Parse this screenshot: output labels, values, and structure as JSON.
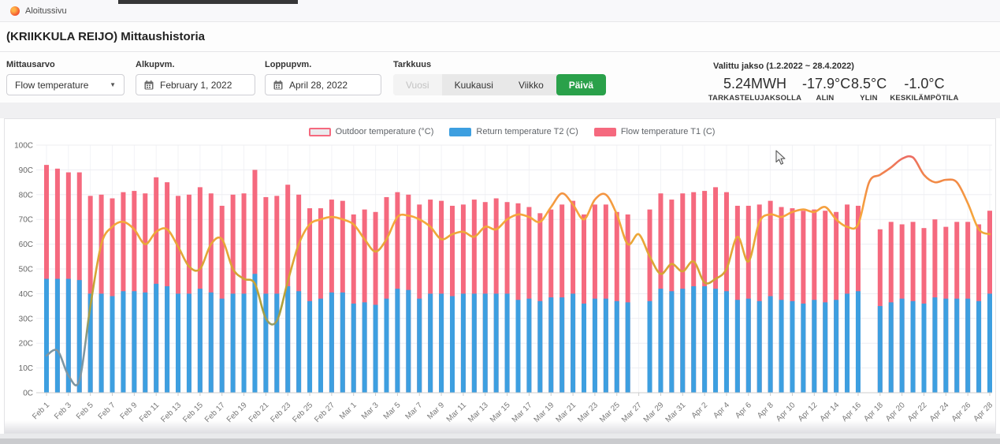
{
  "topbar": {
    "tab_label": "Aloitussivu"
  },
  "header": {
    "title": "(KRIIKKULA REIJO) Mittaushistoria"
  },
  "filters": {
    "mittausarvo": {
      "label": "Mittausarvo",
      "value": "Flow temperature"
    },
    "alkupvm": {
      "label": "Alkupvm.",
      "value": "February 1, 2022"
    },
    "loppupvm": {
      "label": "Loppupvm.",
      "value": "April 28, 2022"
    },
    "tarkkuus": {
      "label": "Tarkkuus",
      "options": [
        {
          "label": "Vuosi",
          "state": "disabled"
        },
        {
          "label": "Kuukausi",
          "state": "default"
        },
        {
          "label": "Viikko",
          "state": "default"
        },
        {
          "label": "Päivä",
          "state": "active"
        }
      ]
    }
  },
  "summary": {
    "period_label": "Valittu jakso (1.2.2022 ~ 28.4.2022)",
    "stats": [
      {
        "value": "5.24MWH",
        "label": "TARKASTELUJAKSOLLA"
      },
      {
        "value": "-17.9°C",
        "label": "ALIN"
      },
      {
        "value": "8.5°C",
        "label": "YLIN"
      },
      {
        "value": "-1.0°C",
        "label": "KESKILÄMPÖTILA"
      }
    ]
  },
  "chart_data": {
    "type": "bar+line combo, daily",
    "title": "",
    "ylim": [
      0,
      100
    ],
    "y_ticks": [
      "0C",
      "10C",
      "20C",
      "30C",
      "40C",
      "50C",
      "60C",
      "70C",
      "80C",
      "90C",
      "100C"
    ],
    "x_tick_every": 2,
    "grid": true,
    "legend_position": "top-center",
    "legend": [
      {
        "name": "Outdoor temperature (°C)",
        "swatch": "outline-pink",
        "type": "line"
      },
      {
        "name": "Return temperature T2 (C)",
        "swatch": "#3d9fe0",
        "type": "bar"
      },
      {
        "name": "Flow temperature T1 (C)",
        "swatch": "#f5697e",
        "type": "bar"
      }
    ],
    "colors": {
      "flow_bar": "#f5697e",
      "return_bar": "#3d9fe0",
      "line_peak": "#e96070",
      "line_high": "#f6a83a",
      "line_mid": "#a8a03c",
      "line_low": "#7e96a2",
      "grid_line": "#edeef2",
      "axis_line": "#cccccc"
    },
    "categories": [
      "Feb 1",
      "Feb 2",
      "Feb 3",
      "Feb 4",
      "Feb 5",
      "Feb 6",
      "Feb 7",
      "Feb 8",
      "Feb 9",
      "Feb 10",
      "Feb 11",
      "Feb 12",
      "Feb 13",
      "Feb 14",
      "Feb 15",
      "Feb 16",
      "Feb 17",
      "Feb 18",
      "Feb 19",
      "Feb 20",
      "Feb 21",
      "Feb 22",
      "Feb 23",
      "Feb 24",
      "Feb 25",
      "Feb 26",
      "Feb 27",
      "Feb 28",
      "Mar 1",
      "Mar 2",
      "Mar 3",
      "Mar 4",
      "Mar 5",
      "Mar 6",
      "Mar 7",
      "Mar 8",
      "Mar 9",
      "Mar 10",
      "Mar 11",
      "Mar 12",
      "Mar 13",
      "Mar 14",
      "Mar 15",
      "Mar 16",
      "Mar 17",
      "Mar 18",
      "Mar 19",
      "Mar 20",
      "Mar 21",
      "Mar 22",
      "Mar 23",
      "Mar 24",
      "Mar 25",
      "Mar 26",
      "Mar 27",
      "Mar 28",
      "Mar 29",
      "Mar 30",
      "Mar 31",
      "Apr 1",
      "Apr 2",
      "Apr 3",
      "Apr 4",
      "Apr 5",
      "Apr 6",
      "Apr 7",
      "Apr 8",
      "Apr 9",
      "Apr 10",
      "Apr 11",
      "Apr 12",
      "Apr 13",
      "Apr 14",
      "Apr 15",
      "Apr 16",
      "Apr 17",
      "Apr 18",
      "Apr 19",
      "Apr 20",
      "Apr 21",
      "Apr 22",
      "Apr 23",
      "Apr 24",
      "Apr 25",
      "Apr 26",
      "Apr 27",
      "Apr 28"
    ],
    "series": [
      {
        "name": "Flow temperature T1 (C)",
        "values": [
          92,
          90.5,
          89,
          89,
          79.5,
          80,
          78.5,
          81,
          81.5,
          80.5,
          87,
          85,
          79.5,
          80,
          83,
          80.5,
          75.5,
          80,
          80.5,
          90,
          79,
          79.5,
          84,
          80,
          74.5,
          74.5,
          78,
          77.5,
          72,
          74,
          73,
          79,
          81,
          80,
          76,
          78,
          77.5,
          75.5,
          76,
          78,
          77,
          78.5,
          77,
          76.5,
          75,
          72.5,
          74,
          76,
          77.5,
          72,
          76,
          76,
          73,
          72,
          null,
          74,
          80.5,
          78,
          80.5,
          81,
          81.5,
          83,
          81,
          75.5,
          75.5,
          76,
          77.5,
          75,
          74.5,
          73.5,
          74,
          73.5,
          73,
          76,
          75.5,
          null,
          66,
          69,
          68,
          69,
          66.5,
          70,
          67,
          69,
          69,
          68,
          73.5
        ]
      },
      {
        "name": "Return temperature T2 (C)",
        "values": [
          46,
          46,
          46,
          45.5,
          40,
          40,
          39,
          41,
          41,
          40.5,
          44,
          43,
          40,
          40,
          42,
          40.5,
          38,
          40,
          40,
          48,
          40,
          40,
          43,
          41,
          37,
          38,
          40.5,
          40.5,
          36,
          36.5,
          35.5,
          38,
          42,
          41.5,
          38,
          40,
          40,
          39,
          40,
          40,
          40,
          40,
          40,
          37.5,
          38,
          37,
          38.5,
          38.5,
          40,
          36,
          38,
          38,
          37,
          36.5,
          null,
          37,
          42,
          41,
          42,
          43,
          43,
          42,
          41,
          37.5,
          38,
          37,
          39,
          37.5,
          37,
          36,
          37.5,
          36.5,
          37.5,
          40,
          41,
          null,
          35,
          36.5,
          38,
          37,
          36,
          38.5,
          38,
          38,
          38,
          37,
          40
        ]
      },
      {
        "name": "Outdoor temperature (°C)",
        "values": [
          15,
          17,
          7,
          5,
          35,
          60,
          67,
          69,
          66,
          60,
          65,
          66,
          59,
          51,
          50,
          60,
          62,
          50,
          46,
          44,
          30,
          29,
          45,
          60,
          68,
          70,
          71,
          70,
          68,
          62,
          57,
          62,
          71,
          71.5,
          70,
          67,
          62,
          64,
          65,
          63,
          67,
          66,
          70,
          72,
          71,
          69,
          75,
          80.5,
          76,
          70,
          78,
          80,
          72,
          60,
          64,
          55,
          48,
          52,
          49,
          53,
          44.5,
          46,
          50,
          63,
          53,
          69,
          72,
          71,
          73,
          74,
          73,
          75,
          70,
          67,
          68,
          85,
          88,
          91,
          94.5,
          95,
          88,
          85,
          86,
          85,
          76.5,
          66,
          64
        ]
      }
    ]
  }
}
